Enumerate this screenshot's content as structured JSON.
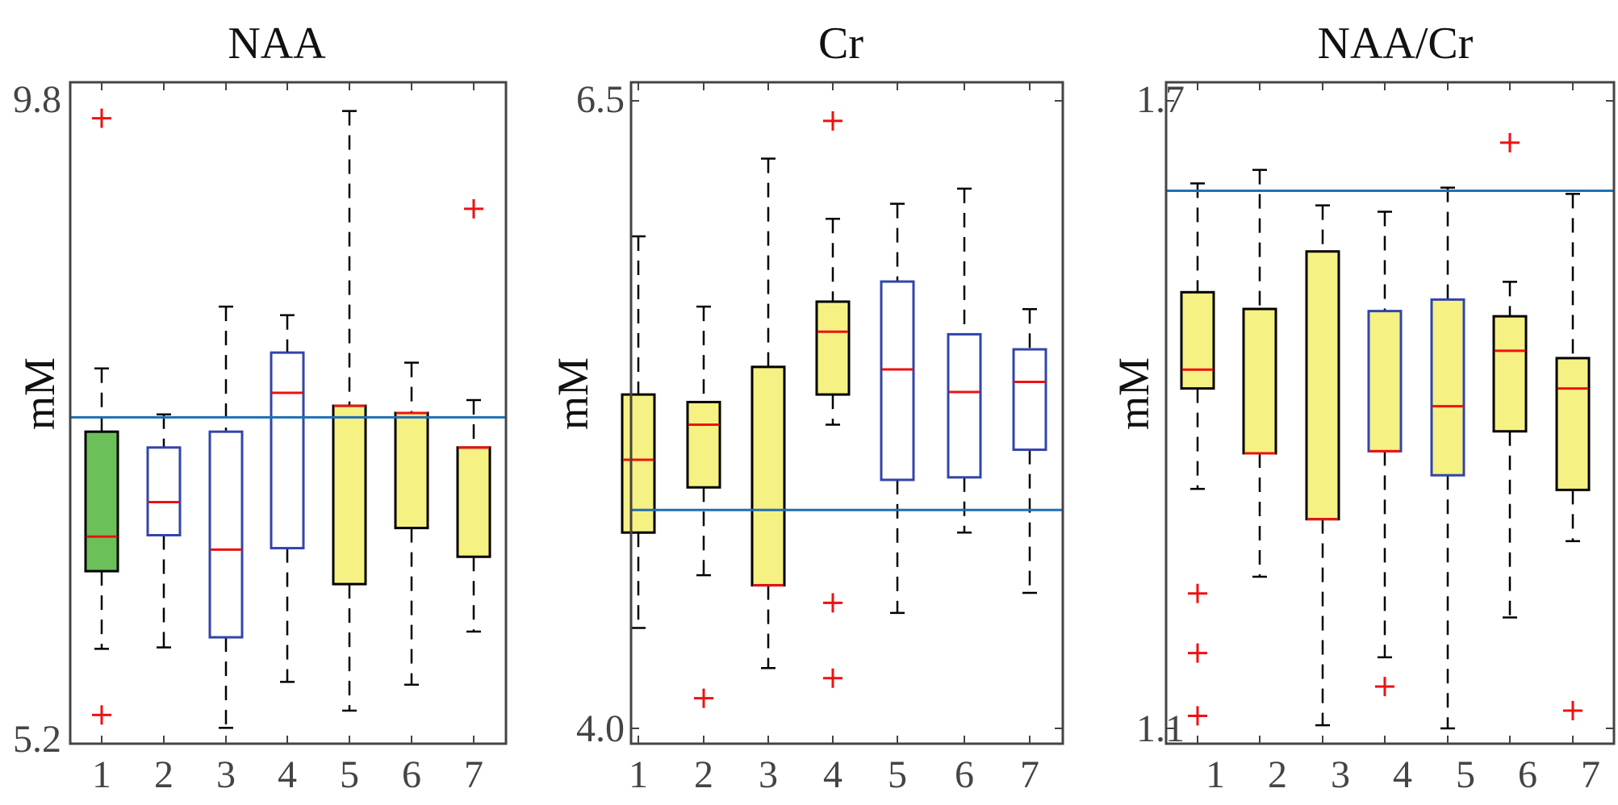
{
  "chart_data": [
    {
      "type": "box",
      "title": "NAA",
      "ylabel": "mM",
      "ylim": [
        5.2,
        9.8
      ],
      "ytick_labels": [
        "9.8",
        "5.2"
      ],
      "categories": [
        "1",
        "2",
        "3",
        "4",
        "5",
        "6",
        "7"
      ],
      "reference_line": 7.47,
      "boxes": [
        {
          "q1": 6.4,
          "median": 6.64,
          "q3": 7.37,
          "whisker_low": 5.86,
          "whisker_high": 7.81,
          "outliers": [
            9.55,
            5.4
          ],
          "fill": "#6cc05a",
          "edge": "#000000"
        },
        {
          "q1": 6.65,
          "median": 6.88,
          "q3": 7.26,
          "whisker_low": 5.87,
          "whisker_high": 7.49,
          "outliers": [],
          "fill": "#ffffff",
          "edge": "#3344aa"
        },
        {
          "q1": 5.94,
          "median": 6.55,
          "q3": 7.37,
          "whisker_low": 5.31,
          "whisker_high": 8.24,
          "outliers": [],
          "fill": "#ffffff",
          "edge": "#3344aa"
        },
        {
          "q1": 6.56,
          "median": 7.64,
          "q3": 7.92,
          "whisker_low": 5.63,
          "whisker_high": 8.18,
          "outliers": [],
          "fill": "#ffffff",
          "edge": "#3344aa"
        },
        {
          "q1": 6.31,
          "median": 7.55,
          "q3": 7.55,
          "whisker_low": 5.43,
          "whisker_high": 9.6,
          "outliers": [],
          "fill": "#f6f183",
          "edge": "#000000"
        },
        {
          "q1": 6.7,
          "median": 7.5,
          "q3": 7.5,
          "whisker_low": 5.61,
          "whisker_high": 7.85,
          "outliers": [],
          "fill": "#f6f183",
          "edge": "#000000"
        },
        {
          "q1": 6.5,
          "median": 7.26,
          "q3": 7.26,
          "whisker_low": 5.98,
          "whisker_high": 7.59,
          "outliers": [
            8.92
          ],
          "fill": "#f6f183",
          "edge": "#000000"
        }
      ]
    },
    {
      "type": "box",
      "title": "Cr",
      "ylabel": "mM",
      "ylim": [
        4.0,
        6.5
      ],
      "ytick_labels": [
        "6.5",
        "4.0"
      ],
      "categories": [
        "1",
        "2",
        "3",
        "4",
        "5",
        "6",
        "7"
      ],
      "reference_line": 4.87,
      "boxes": [
        {
          "q1": 4.78,
          "median": 5.07,
          "q3": 5.33,
          "whisker_low": 4.4,
          "whisker_high": 5.96,
          "outliers": [],
          "fill": "#f6f183",
          "edge": "#000000"
        },
        {
          "q1": 4.96,
          "median": 5.21,
          "q3": 5.3,
          "whisker_low": 4.61,
          "whisker_high": 5.68,
          "outliers": [
            4.12
          ],
          "fill": "#f6f183",
          "edge": "#000000"
        },
        {
          "q1": 4.57,
          "median": 4.57,
          "q3": 5.44,
          "whisker_low": 4.24,
          "whisker_high": 6.27,
          "outliers": [],
          "fill": "#f6f183",
          "edge": "#000000"
        },
        {
          "q1": 5.33,
          "median": 5.58,
          "q3": 5.7,
          "whisker_low": 5.21,
          "whisker_high": 6.03,
          "outliers": [
            6.42,
            4.5,
            4.2
          ],
          "fill": "#f6f183",
          "edge": "#000000"
        },
        {
          "q1": 4.99,
          "median": 5.43,
          "q3": 5.78,
          "whisker_low": 4.46,
          "whisker_high": 6.09,
          "outliers": [],
          "fill": "#ffffff",
          "edge": "#3344aa"
        },
        {
          "q1": 5.0,
          "median": 5.34,
          "q3": 5.57,
          "whisker_low": 4.78,
          "whisker_high": 6.15,
          "outliers": [],
          "fill": "#ffffff",
          "edge": "#3344aa"
        },
        {
          "q1": 5.11,
          "median": 5.38,
          "q3": 5.51,
          "whisker_low": 4.54,
          "whisker_high": 5.67,
          "outliers": [],
          "fill": "#ffffff",
          "edge": "#3344aa"
        }
      ]
    },
    {
      "type": "box",
      "title": "NAA/Cr",
      "ylabel": "mM",
      "ylim": [
        1.1,
        1.7
      ],
      "ytick_labels": [
        "1.7",
        "1.1"
      ],
      "categories": [
        "1",
        "2",
        "3",
        "4",
        "5",
        "6",
        "7"
      ],
      "reference_line": 1.614,
      "boxes": [
        {
          "q1": 1.425,
          "median": 1.443,
          "q3": 1.517,
          "whisker_low": 1.329,
          "whisker_high": 1.621,
          "outliers": [
            1.229,
            1.172,
            1.112
          ],
          "fill": "#f6f183",
          "edge": "#000000"
        },
        {
          "q1": 1.363,
          "median": 1.363,
          "q3": 1.501,
          "whisker_low": 1.245,
          "whisker_high": 1.634,
          "outliers": [],
          "fill": "#f6f183",
          "edge": "#000000"
        },
        {
          "q1": 1.3,
          "median": 1.3,
          "q3": 1.556,
          "whisker_low": 1.103,
          "whisker_high": 1.6,
          "outliers": [],
          "fill": "#f6f183",
          "edge": "#000000"
        },
        {
          "q1": 1.365,
          "median": 1.365,
          "q3": 1.499,
          "whisker_low": 1.168,
          "whisker_high": 1.594,
          "outliers": [
            1.14
          ],
          "fill": "#f6f183",
          "edge": "#3344aa"
        },
        {
          "q1": 1.342,
          "median": 1.408,
          "q3": 1.51,
          "whisker_low": 1.1,
          "whisker_high": 1.617,
          "outliers": [],
          "fill": "#f6f183",
          "edge": "#3344aa"
        },
        {
          "q1": 1.384,
          "median": 1.461,
          "q3": 1.494,
          "whisker_low": 1.206,
          "whisker_high": 1.527,
          "outliers": [
            1.66
          ],
          "fill": "#f6f183",
          "edge": "#000000"
        },
        {
          "q1": 1.328,
          "median": 1.425,
          "q3": 1.454,
          "whisker_low": 1.279,
          "whisker_high": 1.611,
          "outliers": [
            1.117
          ],
          "fill": "#f6f183",
          "edge": "#000000"
        }
      ]
    }
  ]
}
